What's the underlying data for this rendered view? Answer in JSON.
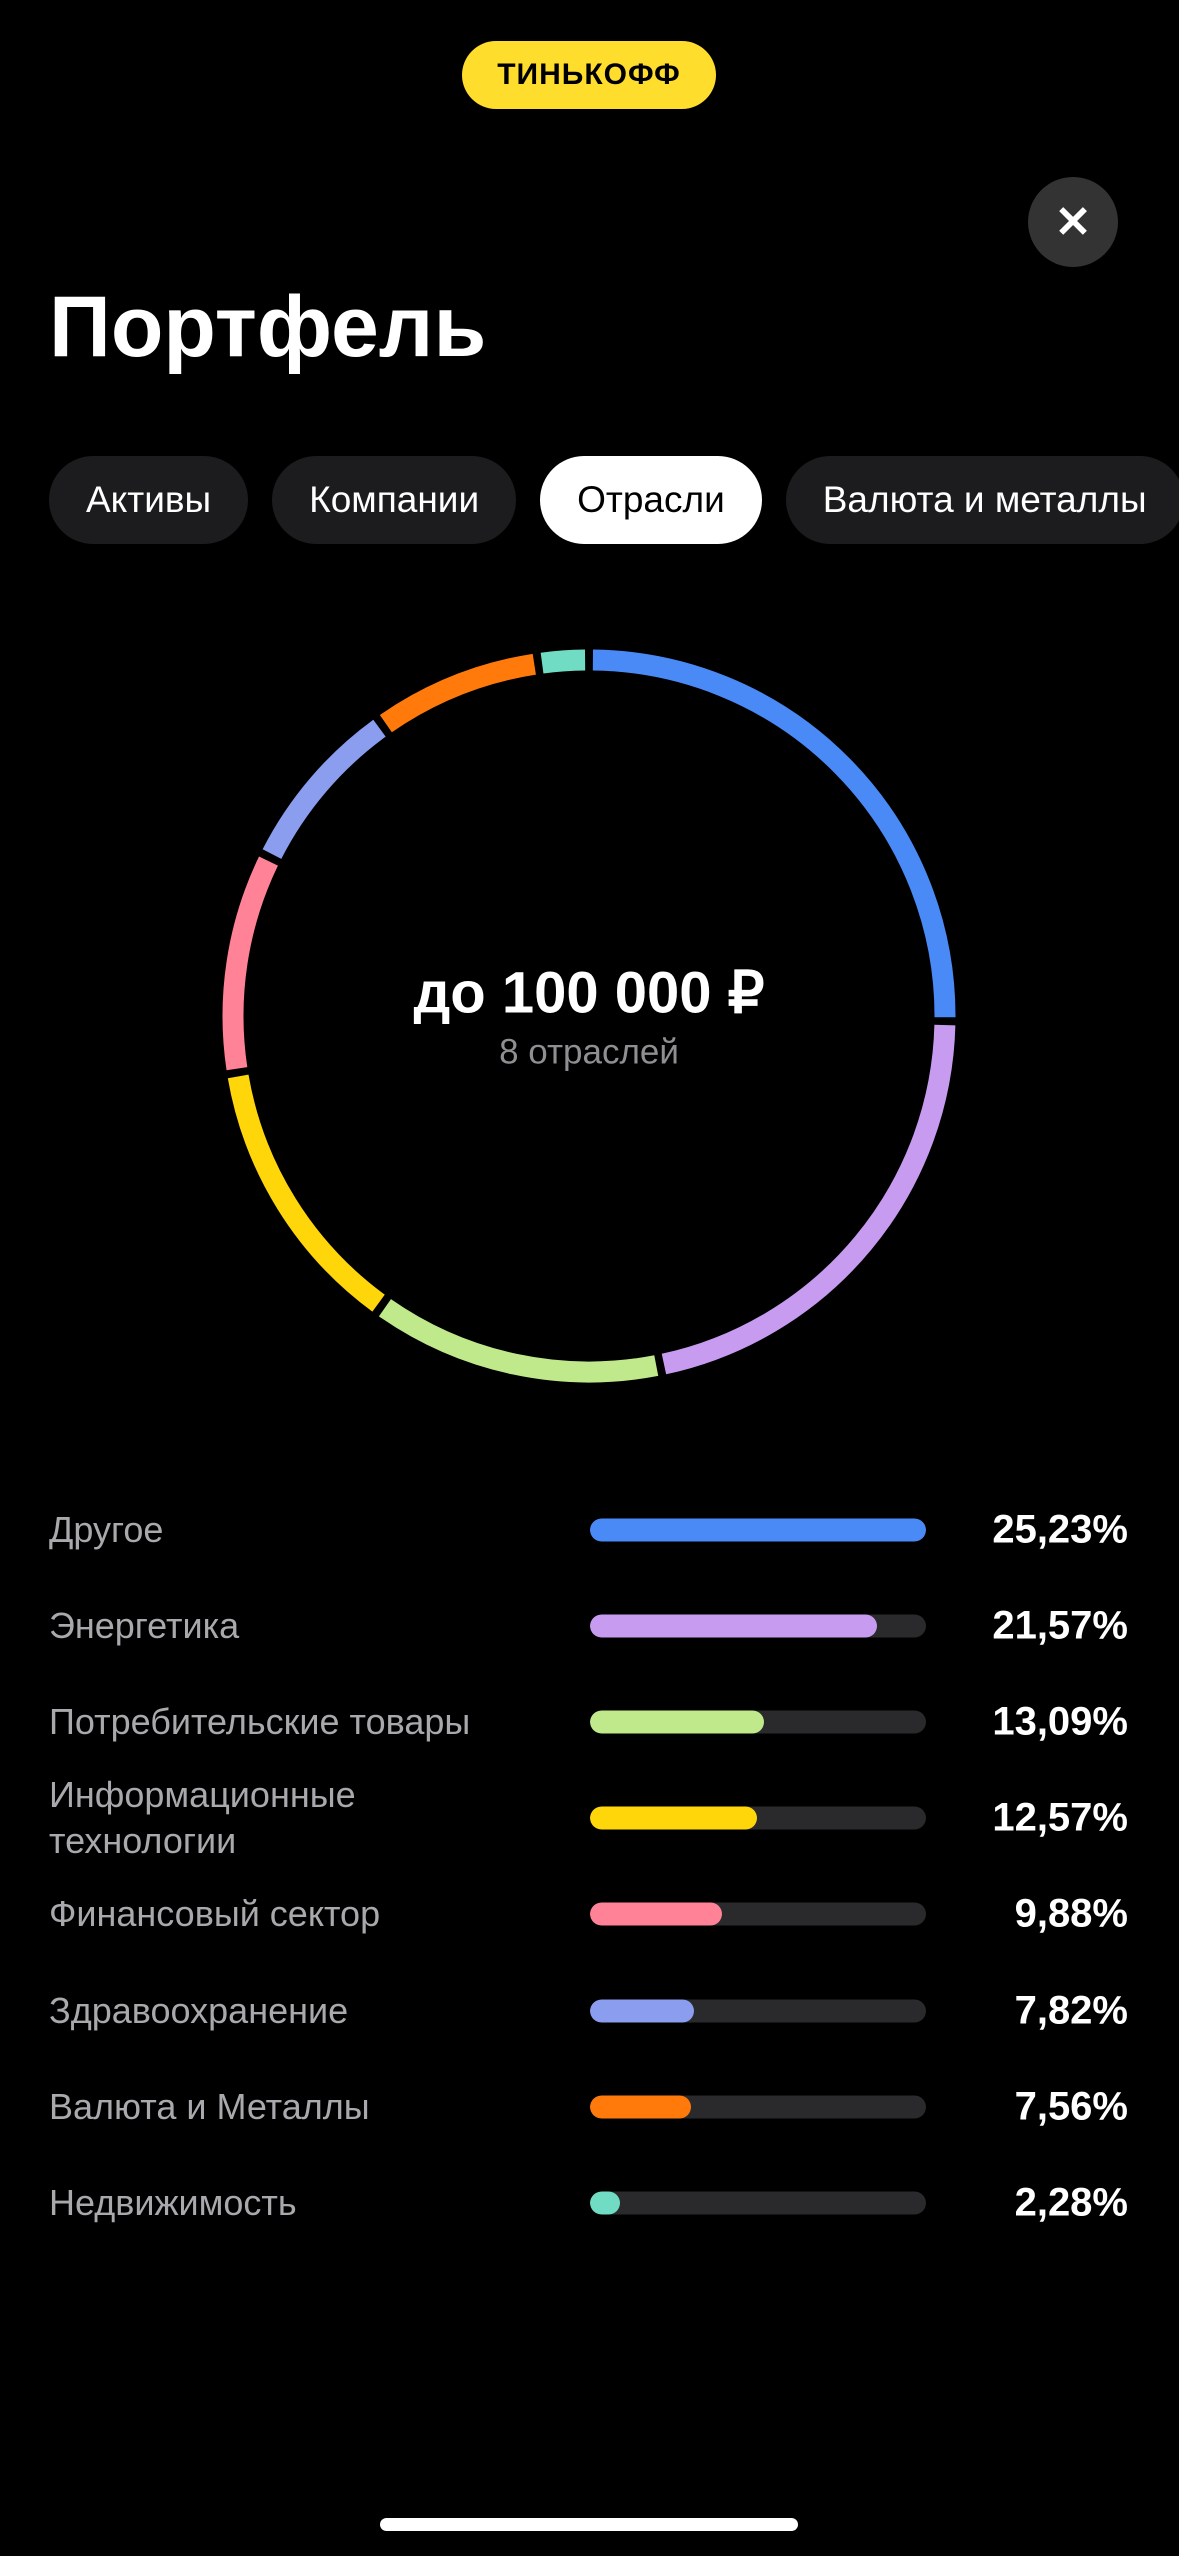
{
  "header": {
    "logo": "ТИНЬКОФФ",
    "close": "✕"
  },
  "title": "Портфель",
  "tabs": [
    "Активы",
    "Компании",
    "Отрасли",
    "Валюта и металлы"
  ],
  "active_tab": 2,
  "chart_data": {
    "type": "pie",
    "center_title": "до 100 000 ₽",
    "center_subtitle": "8 отраслей",
    "categories": [
      "Другое",
      "Энергетика",
      "Потребительские товары",
      "Информационные технологии",
      "Финансовый сектор",
      "Здравоохранение",
      "Валюта и Металлы",
      "Недвижимость"
    ],
    "values": [
      25.23,
      21.57,
      13.09,
      12.57,
      9.88,
      7.82,
      7.56,
      2.28
    ],
    "value_labels": [
      "25,23%",
      "21,57%",
      "13,09%",
      "12,57%",
      "9,88%",
      "7,82%",
      "7,56%",
      "2,28%"
    ],
    "colors": [
      "#4a8af6",
      "#c79cf0",
      "#bfe98a",
      "#ffd60a",
      "#ff8296",
      "#8b9def",
      "#ff7a0b",
      "#6fdcc3"
    ]
  }
}
